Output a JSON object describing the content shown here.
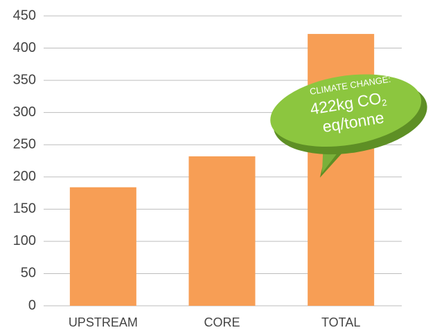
{
  "chart_data": {
    "type": "bar",
    "categories": [
      "UPSTREAM",
      "CORE",
      "TOTAL"
    ],
    "values": [
      184,
      232,
      422
    ],
    "color": "#f79e55",
    "ylim": [
      0,
      450
    ],
    "yticks": [
      0,
      50,
      100,
      150,
      200,
      250,
      300,
      350,
      400,
      450
    ],
    "grid": true,
    "annotation": {
      "label": "CLIMATE CHANGE:",
      "value_text": "422kg CO",
      "subscript": "2",
      "unit": "eq/tonne",
      "color": "#8cc63f"
    }
  }
}
